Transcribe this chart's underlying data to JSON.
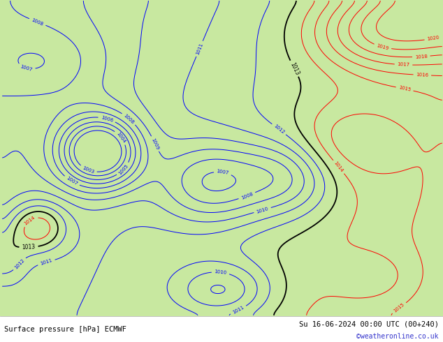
{
  "title_left": "Surface pressure [hPa] ECMWF",
  "title_right": "Su 16-06-2024 00:00 UTC (00+240)",
  "credit": "©weatheronline.co.uk",
  "bg_color": "#c8e8a0",
  "bottom_bar_color": "#ffffff",
  "bottom_text_color": "#000000",
  "credit_color": "#3333cc",
  "figsize": [
    6.34,
    4.9
  ],
  "dpi": 100,
  "blue_levels": [
    1003,
    1004,
    1005,
    1006,
    1007,
    1008,
    1009,
    1010,
    1011,
    1012
  ],
  "black_levels": [
    1013
  ],
  "red_levels": [
    1014,
    1015,
    1016,
    1017,
    1018,
    1019,
    1020
  ],
  "all_levels": [
    1003,
    1004,
    1005,
    1006,
    1007,
    1008,
    1009,
    1010,
    1011,
    1012,
    1013,
    1014,
    1015,
    1016,
    1017,
    1018,
    1019,
    1020
  ]
}
